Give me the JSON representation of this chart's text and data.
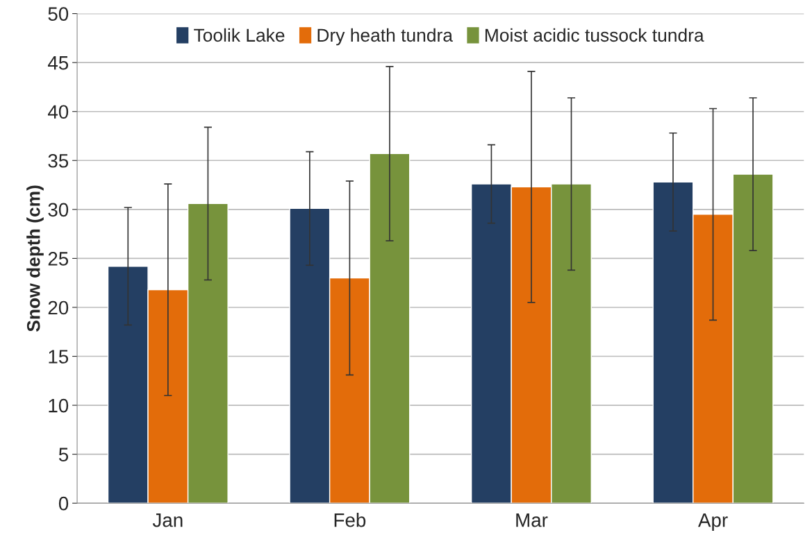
{
  "chart_data": {
    "type": "bar",
    "ylabel": "Snow depth (cm)",
    "categories": [
      "Jan",
      "Feb",
      "Mar",
      "Apr"
    ],
    "series": [
      {
        "name": "Toolik Lake",
        "color": "#243f63",
        "values": [
          24.2,
          30.1,
          32.6,
          32.8
        ],
        "errors": [
          6.0,
          5.8,
          4.0,
          5.0
        ]
      },
      {
        "name": "Dry heath tundra",
        "color": "#e36c0a",
        "values": [
          21.8,
          23.0,
          32.3,
          29.5
        ],
        "errors": [
          10.8,
          9.9,
          11.8,
          10.8
        ]
      },
      {
        "name": "Moist acidic tussock tundra",
        "color": "#77933c",
        "values": [
          30.6,
          35.7,
          32.6,
          33.6
        ],
        "errors": [
          7.8,
          8.9,
          8.8,
          7.8
        ]
      }
    ],
    "ylim": [
      0,
      50
    ],
    "yticks": [
      0,
      5,
      10,
      15,
      20,
      25,
      30,
      35,
      40,
      45,
      50
    ],
    "grid": "y",
    "legend": "top"
  }
}
